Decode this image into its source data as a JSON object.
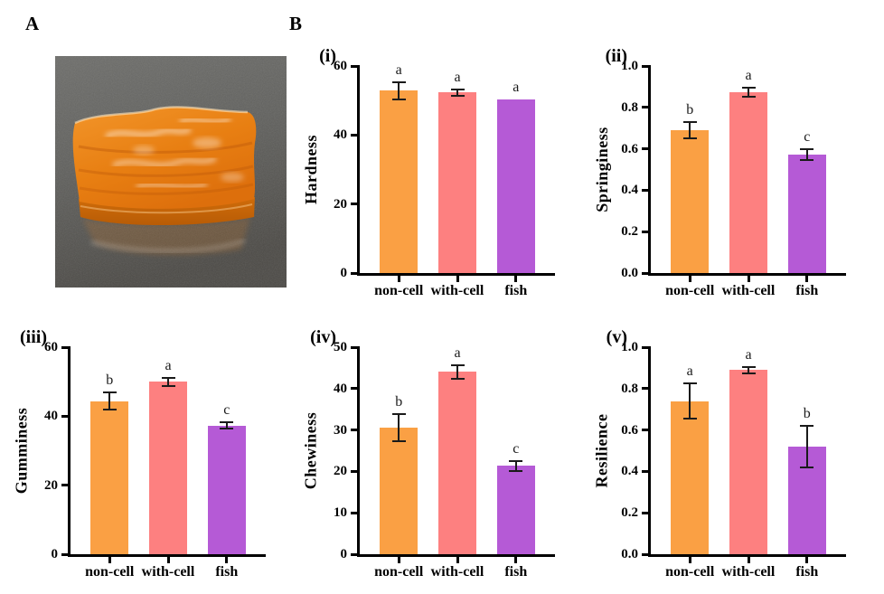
{
  "figure": {
    "panel_a_label": "A",
    "panel_b_label": "B",
    "photo": {
      "name": "orange-gel-slab-photo",
      "slab_color": "#e8821a",
      "surface_color": "#62625f"
    }
  },
  "bar_colors": [
    "#FAA044",
    "#FD8080",
    "#B55AD6"
  ],
  "axis_color": "#000000",
  "categories": [
    "non-cell",
    "with-cell",
    "fish"
  ],
  "chart_data": [
    {
      "type": "bar",
      "panel": "(i)",
      "ylabel": "Hardness",
      "xlabel": "",
      "ylim": [
        0,
        60
      ],
      "yticks": [
        {
          "v": 0,
          "label": "0"
        },
        {
          "v": 20,
          "label": "20"
        },
        {
          "v": 40,
          "label": "40"
        },
        {
          "v": 60,
          "label": "60"
        }
      ],
      "categories": [
        "non-cell",
        "with-cell",
        "fish"
      ],
      "values": [
        52.8,
        52.3,
        50.2
      ],
      "errors": [
        2.6,
        1.0,
        0
      ],
      "sig_letters": [
        "a",
        "a",
        "a"
      ],
      "grid": false,
      "legend": "none"
    },
    {
      "type": "bar",
      "panel": "(ii)",
      "ylabel": "Springiness",
      "xlabel": "",
      "ylim": [
        0,
        1.0
      ],
      "yticks": [
        {
          "v": 0,
          "label": "0.0"
        },
        {
          "v": 0.2,
          "label": "0.2"
        },
        {
          "v": 0.4,
          "label": "0.4"
        },
        {
          "v": 0.6,
          "label": "0.6"
        },
        {
          "v": 0.8,
          "label": "0.8"
        },
        {
          "v": 1.0,
          "label": "1.0"
        }
      ],
      "categories": [
        "non-cell",
        "with-cell",
        "fish"
      ],
      "values": [
        0.69,
        0.875,
        0.572
      ],
      "errors": [
        0.04,
        0.022,
        0.028
      ],
      "sig_letters": [
        "b",
        "a",
        "c"
      ],
      "grid": false,
      "legend": "none"
    },
    {
      "type": "bar",
      "panel": "(iii)",
      "ylabel": "Gumminess",
      "xlabel": "",
      "ylim": [
        0,
        60
      ],
      "yticks": [
        {
          "v": 0,
          "label": "0"
        },
        {
          "v": 20,
          "label": "20"
        },
        {
          "v": 40,
          "label": "40"
        },
        {
          "v": 60,
          "label": "60"
        }
      ],
      "categories": [
        "non-cell",
        "with-cell",
        "fish"
      ],
      "values": [
        44.4,
        50.0,
        37.3
      ],
      "errors": [
        2.4,
        1.2,
        0.9
      ],
      "sig_letters": [
        "b",
        "a",
        "c"
      ],
      "grid": false,
      "legend": "none"
    },
    {
      "type": "bar",
      "panel": "(iv)",
      "ylabel": "Chewiness",
      "xlabel": "",
      "ylim": [
        0,
        50
      ],
      "yticks": [
        {
          "v": 0,
          "label": "0"
        },
        {
          "v": 10,
          "label": "10"
        },
        {
          "v": 20,
          "label": "20"
        },
        {
          "v": 30,
          "label": "30"
        },
        {
          "v": 40,
          "label": "40"
        },
        {
          "v": 50,
          "label": "50"
        }
      ],
      "categories": [
        "non-cell",
        "with-cell",
        "fish"
      ],
      "values": [
        30.6,
        44.0,
        21.3
      ],
      "errors": [
        3.3,
        1.6,
        1.2
      ],
      "sig_letters": [
        "b",
        "a",
        "c"
      ],
      "grid": false,
      "legend": "none"
    },
    {
      "type": "bar",
      "panel": "(v)",
      "ylabel": "Resilience",
      "xlabel": "",
      "ylim": [
        0,
        1.0
      ],
      "yticks": [
        {
          "v": 0,
          "label": "0.0"
        },
        {
          "v": 0.2,
          "label": "0.2"
        },
        {
          "v": 0.4,
          "label": "0.4"
        },
        {
          "v": 0.6,
          "label": "0.6"
        },
        {
          "v": 0.8,
          "label": "0.8"
        },
        {
          "v": 1.0,
          "label": "1.0"
        }
      ],
      "categories": [
        "non-cell",
        "with-cell",
        "fish"
      ],
      "values": [
        0.74,
        0.89,
        0.52
      ],
      "errors": [
        0.085,
        0.016,
        0.1
      ],
      "sig_letters": [
        "a",
        "a",
        "b"
      ],
      "grid": false,
      "legend": "none"
    }
  ]
}
